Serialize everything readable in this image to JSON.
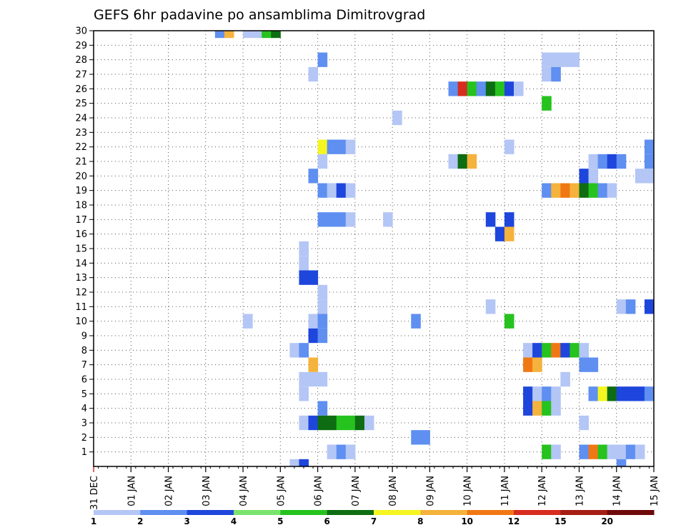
{
  "chart_data": {
    "type": "heatmap",
    "title": "GEFS 6hr padavine po ansamblima Dimitrovgrad",
    "xlabel": "",
    "ylabel": "",
    "ylim": [
      0,
      30
    ],
    "xlim": [
      0,
      15
    ],
    "y_ticks": [
      "1",
      "2",
      "3",
      "4",
      "5",
      "6",
      "7",
      "8",
      "9",
      "10",
      "11",
      "12",
      "13",
      "14",
      "15",
      "16",
      "17",
      "18",
      "19",
      "20",
      "21",
      "22",
      "23",
      "24",
      "25",
      "26",
      "27",
      "28",
      "29",
      "30"
    ],
    "x_ticks": [
      "31 DEC",
      "01 JAN",
      "02 JAN",
      "03 JAN",
      "04 JAN",
      "05 JAN",
      "06 JAN",
      "07 JAN",
      "08 JAN",
      "09 JAN",
      "10 JAN",
      "11 JAN",
      "12 JAN",
      "13 JAN",
      "14 JAN",
      "15 JAN"
    ],
    "legend": {
      "labels": [
        "1",
        "2",
        "3",
        "4",
        "5",
        "6",
        "7",
        "8",
        "10",
        "12",
        "15",
        "20"
      ],
      "colors": [
        "#b4c6f5",
        "#5f8ff0",
        "#1e46dc",
        "#7ae36b",
        "#26c21e",
        "#0e6d12",
        "#f5f520",
        "#f5b23c",
        "#f07814",
        "#d72d1e",
        "#a51e14",
        "#6e0a0a"
      ]
    },
    "cells": [
      {
        "member": 30,
        "step": 13,
        "level": 2
      },
      {
        "member": 30,
        "step": 14,
        "level": 8
      },
      {
        "member": 30,
        "step": 16,
        "level": 1
      },
      {
        "member": 30,
        "step": 17,
        "level": 1
      },
      {
        "member": 30,
        "step": 18,
        "level": 5
      },
      {
        "member": 30,
        "step": 19,
        "level": 6
      },
      {
        "member": 28,
        "step": 24,
        "level": 2
      },
      {
        "member": 28,
        "step": 48,
        "level": 1
      },
      {
        "member": 28,
        "step": 49,
        "level": 1
      },
      {
        "member": 28,
        "step": 50,
        "level": 1
      },
      {
        "member": 28,
        "step": 51,
        "level": 1
      },
      {
        "member": 27,
        "step": 23,
        "level": 1
      },
      {
        "member": 27,
        "step": 48,
        "level": 1
      },
      {
        "member": 27,
        "step": 49,
        "level": 2
      },
      {
        "member": 26,
        "step": 38,
        "level": 2
      },
      {
        "member": 26,
        "step": 39,
        "level": 10
      },
      {
        "member": 26,
        "step": 40,
        "level": 5
      },
      {
        "member": 26,
        "step": 41,
        "level": 2
      },
      {
        "member": 26,
        "step": 42,
        "level": 6
      },
      {
        "member": 26,
        "step": 43,
        "level": 5
      },
      {
        "member": 26,
        "step": 44,
        "level": 3
      },
      {
        "member": 26,
        "step": 45,
        "level": 1
      },
      {
        "member": 25,
        "step": 48,
        "level": 5
      },
      {
        "member": 24,
        "step": 32,
        "level": 1
      },
      {
        "member": 22,
        "step": 24,
        "level": 7
      },
      {
        "member": 22,
        "step": 25,
        "level": 2
      },
      {
        "member": 22,
        "step": 26,
        "level": 2
      },
      {
        "member": 22,
        "step": 27,
        "level": 1
      },
      {
        "member": 22,
        "step": 44,
        "level": 1
      },
      {
        "member": 22,
        "step": 59,
        "level": 2
      },
      {
        "member": 21,
        "step": 24,
        "level": 1
      },
      {
        "member": 21,
        "step": 38,
        "level": 1
      },
      {
        "member": 21,
        "step": 39,
        "level": 6
      },
      {
        "member": 21,
        "step": 40,
        "level": 8
      },
      {
        "member": 21,
        "step": 53,
        "level": 1
      },
      {
        "member": 21,
        "step": 54,
        "level": 2
      },
      {
        "member": 21,
        "step": 55,
        "level": 3
      },
      {
        "member": 21,
        "step": 56,
        "level": 2
      },
      {
        "member": 21,
        "step": 59,
        "level": 2
      },
      {
        "member": 20,
        "step": 23,
        "level": 2
      },
      {
        "member": 20,
        "step": 52,
        "level": 3
      },
      {
        "member": 20,
        "step": 53,
        "level": 1
      },
      {
        "member": 20,
        "step": 58,
        "level": 1
      },
      {
        "member": 20,
        "step": 59,
        "level": 1
      },
      {
        "member": 19,
        "step": 24,
        "level": 2
      },
      {
        "member": 19,
        "step": 25,
        "level": 1
      },
      {
        "member": 19,
        "step": 26,
        "level": 3
      },
      {
        "member": 19,
        "step": 27,
        "level": 1
      },
      {
        "member": 19,
        "step": 48,
        "level": 2
      },
      {
        "member": 19,
        "step": 49,
        "level": 8
      },
      {
        "member": 19,
        "step": 50,
        "level": 9
      },
      {
        "member": 19,
        "step": 51,
        "level": 8
      },
      {
        "member": 19,
        "step": 52,
        "level": 6
      },
      {
        "member": 19,
        "step": 53,
        "level": 5
      },
      {
        "member": 19,
        "step": 54,
        "level": 2
      },
      {
        "member": 19,
        "step": 55,
        "level": 1
      },
      {
        "member": 17,
        "step": 24,
        "level": 2
      },
      {
        "member": 17,
        "step": 25,
        "level": 2
      },
      {
        "member": 17,
        "step": 26,
        "level": 2
      },
      {
        "member": 17,
        "step": 27,
        "level": 1
      },
      {
        "member": 17,
        "step": 31,
        "level": 1
      },
      {
        "member": 17,
        "step": 42,
        "level": 3
      },
      {
        "member": 17,
        "step": 44,
        "level": 3
      },
      {
        "member": 16,
        "step": 43,
        "level": 3
      },
      {
        "member": 16,
        "step": 44,
        "level": 8
      },
      {
        "member": 15,
        "step": 22,
        "level": 1
      },
      {
        "member": 14,
        "step": 22,
        "level": 1
      },
      {
        "member": 13,
        "step": 22,
        "level": 3
      },
      {
        "member": 13,
        "step": 23,
        "level": 3
      },
      {
        "member": 12,
        "step": 24,
        "level": 1
      },
      {
        "member": 11,
        "step": 24,
        "level": 1
      },
      {
        "member": 11,
        "step": 42,
        "level": 1
      },
      {
        "member": 11,
        "step": 56,
        "level": 1
      },
      {
        "member": 11,
        "step": 57,
        "level": 2
      },
      {
        "member": 11,
        "step": 59,
        "level": 3
      },
      {
        "member": 10,
        "step": 16,
        "level": 1
      },
      {
        "member": 10,
        "step": 23,
        "level": 1
      },
      {
        "member": 10,
        "step": 24,
        "level": 2
      },
      {
        "member": 10,
        "step": 34,
        "level": 2
      },
      {
        "member": 10,
        "step": 44,
        "level": 5
      },
      {
        "member": 9,
        "step": 23,
        "level": 3
      },
      {
        "member": 9,
        "step": 24,
        "level": 2
      },
      {
        "member": 8,
        "step": 21,
        "level": 1
      },
      {
        "member": 8,
        "step": 22,
        "level": 2
      },
      {
        "member": 8,
        "step": 46,
        "level": 1
      },
      {
        "member": 8,
        "step": 47,
        "level": 3
      },
      {
        "member": 8,
        "step": 48,
        "level": 5
      },
      {
        "member": 8,
        "step": 49,
        "level": 9
      },
      {
        "member": 8,
        "step": 50,
        "level": 3
      },
      {
        "member": 8,
        "step": 51,
        "level": 5
      },
      {
        "member": 8,
        "step": 52,
        "level": 1
      },
      {
        "member": 7,
        "step": 23,
        "level": 8
      },
      {
        "member": 7,
        "step": 46,
        "level": 9
      },
      {
        "member": 7,
        "step": 47,
        "level": 8
      },
      {
        "member": 7,
        "step": 52,
        "level": 2
      },
      {
        "member": 7,
        "step": 53,
        "level": 2
      },
      {
        "member": 6,
        "step": 22,
        "level": 1
      },
      {
        "member": 6,
        "step": 23,
        "level": 1
      },
      {
        "member": 6,
        "step": 24,
        "level": 1
      },
      {
        "member": 6,
        "step": 50,
        "level": 1
      },
      {
        "member": 5,
        "step": 22,
        "level": 1
      },
      {
        "member": 5,
        "step": 46,
        "level": 3
      },
      {
        "member": 5,
        "step": 47,
        "level": 1
      },
      {
        "member": 5,
        "step": 48,
        "level": 2
      },
      {
        "member": 5,
        "step": 49,
        "level": 1
      },
      {
        "member": 5,
        "step": 53,
        "level": 2
      },
      {
        "member": 5,
        "step": 54,
        "level": 7
      },
      {
        "member": 5,
        "step": 55,
        "level": 6
      },
      {
        "member": 5,
        "step": 56,
        "level": 3
      },
      {
        "member": 5,
        "step": 57,
        "level": 3
      },
      {
        "member": 5,
        "step": 58,
        "level": 3
      },
      {
        "member": 5,
        "step": 59,
        "level": 2
      },
      {
        "member": 4,
        "step": 24,
        "level": 2
      },
      {
        "member": 4,
        "step": 46,
        "level": 3
      },
      {
        "member": 4,
        "step": 47,
        "level": 8
      },
      {
        "member": 4,
        "step": 48,
        "level": 5
      },
      {
        "member": 4,
        "step": 49,
        "level": 1
      },
      {
        "member": 3,
        "step": 22,
        "level": 1
      },
      {
        "member": 3,
        "step": 23,
        "level": 3
      },
      {
        "member": 3,
        "step": 24,
        "level": 6
      },
      {
        "member": 3,
        "step": 25,
        "level": 6
      },
      {
        "member": 3,
        "step": 26,
        "level": 5
      },
      {
        "member": 3,
        "step": 27,
        "level": 5
      },
      {
        "member": 3,
        "step": 28,
        "level": 6
      },
      {
        "member": 3,
        "step": 29,
        "level": 1
      },
      {
        "member": 3,
        "step": 52,
        "level": 1
      },
      {
        "member": 2,
        "step": 34,
        "level": 2
      },
      {
        "member": 2,
        "step": 35,
        "level": 2
      },
      {
        "member": 1,
        "step": 25,
        "level": 1
      },
      {
        "member": 1,
        "step": 26,
        "level": 2
      },
      {
        "member": 1,
        "step": 27,
        "level": 1
      },
      {
        "member": 1,
        "step": 48,
        "level": 5
      },
      {
        "member": 1,
        "step": 49,
        "level": 1
      },
      {
        "member": 1,
        "step": 52,
        "level": 2
      },
      {
        "member": 1,
        "step": 53,
        "level": 9
      },
      {
        "member": 1,
        "step": 54,
        "level": 5
      },
      {
        "member": 1,
        "step": 55,
        "level": 1
      },
      {
        "member": 1,
        "step": 56,
        "level": 1
      },
      {
        "member": 1,
        "step": 57,
        "level": 2
      },
      {
        "member": 1,
        "step": 58,
        "level": 1
      },
      {
        "member": 0,
        "step": 21,
        "level": 1
      },
      {
        "member": 0,
        "step": 22,
        "level": 3
      },
      {
        "member": 0,
        "step": 56,
        "level": 2
      }
    ]
  }
}
